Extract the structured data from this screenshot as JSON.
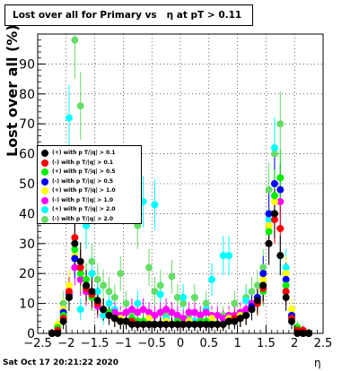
{
  "chart_data": {
    "type": "scatter",
    "title": "Lost over all for Primary vs   η at pT > 0.11",
    "xlabel": "η",
    "ylabel": "Lost over all (%)",
    "xlim": [
      -2.5,
      2.5
    ],
    "ylim": [
      0,
      100
    ],
    "x_ticks": [
      "−2.5",
      "−2",
      "−1.5",
      "−1",
      "−0.5",
      "0",
      "0.5",
      "1",
      "1.5",
      "2",
      "2.5"
    ],
    "y_ticks": [
      "0",
      "10",
      "20",
      "30",
      "40",
      "50",
      "60",
      "70",
      "80",
      "90"
    ],
    "grid": true,
    "error_bars": true,
    "legend_position": "left-middle",
    "series": [
      {
        "name": "(+) with p T/|q| > 0.1",
        "color": "#000000",
        "x": [
          -2.25,
          -2.15,
          -2.05,
          -1.95,
          -1.85,
          -1.75,
          -1.65,
          -1.55,
          -1.45,
          -1.35,
          -1.25,
          -1.15,
          -1.05,
          -0.95,
          -0.85,
          -0.75,
          -0.65,
          -0.55,
          -0.45,
          -0.35,
          -0.25,
          -0.15,
          -0.05,
          0.05,
          0.15,
          0.25,
          0.35,
          0.45,
          0.55,
          0.65,
          0.75,
          0.85,
          0.95,
          1.05,
          1.15,
          1.25,
          1.35,
          1.45,
          1.55,
          1.65,
          1.75,
          1.85,
          1.95,
          2.05,
          2.15,
          2.25
        ],
        "y": [
          0,
          0,
          4,
          12,
          30,
          24,
          16,
          14,
          11,
          8,
          6,
          5,
          4,
          4,
          3,
          3,
          3,
          3,
          3,
          3,
          3,
          3,
          3,
          3,
          3,
          3,
          3,
          3,
          3,
          3,
          3,
          4,
          4,
          5,
          6,
          8,
          11,
          16,
          30,
          40,
          26,
          12,
          4,
          0,
          0,
          0
        ]
      },
      {
        "name": "(-) with p T/|q| > 0.1",
        "color": "#ff0000",
        "x": [
          -2.25,
          -2.15,
          -2.05,
          -1.95,
          -1.85,
          -1.75,
          -1.65,
          -1.55,
          -1.45,
          -1.35,
          -1.25,
          -1.15,
          -1.05,
          -0.95,
          -0.85,
          -0.75,
          -0.65,
          -0.55,
          -0.45,
          -0.35,
          -0.25,
          -0.15,
          -0.05,
          0.05,
          0.15,
          0.25,
          0.35,
          0.45,
          0.55,
          0.65,
          0.75,
          0.85,
          0.95,
          1.05,
          1.15,
          1.25,
          1.35,
          1.45,
          1.55,
          1.65,
          1.75,
          1.85,
          1.95,
          2.05,
          2.15,
          2.25
        ],
        "y": [
          0,
          1,
          5,
          14,
          32,
          22,
          15,
          13,
          10,
          8,
          6,
          5,
          4,
          4,
          4,
          3,
          3,
          3,
          3,
          3,
          3,
          3,
          3,
          3,
          3,
          3,
          3,
          3,
          3,
          3,
          3,
          4,
          5,
          5,
          6,
          8,
          10,
          15,
          30,
          38,
          35,
          14,
          5,
          1,
          1,
          0
        ]
      },
      {
        "name": "(+) with p T/|q| > 0.5",
        "color": "#00ee00",
        "x": [
          -2.25,
          -2.15,
          -2.05,
          -1.95,
          -1.85,
          -1.75,
          -1.65,
          -1.55,
          -1.45,
          -1.35,
          -1.25,
          -1.15,
          -1.05,
          -0.95,
          -0.85,
          -0.75,
          -0.65,
          -0.55,
          -0.45,
          -0.35,
          -0.25,
          -0.15,
          -0.05,
          0.05,
          0.15,
          0.25,
          0.35,
          0.45,
          0.55,
          0.65,
          0.75,
          0.85,
          0.95,
          1.05,
          1.15,
          1.25,
          1.35,
          1.45,
          1.55,
          1.65,
          1.75,
          1.85,
          1.95,
          2.05,
          2.15,
          2.25
        ],
        "y": [
          0,
          2,
          6,
          12,
          28,
          20,
          18,
          12,
          10,
          8,
          7,
          5,
          4,
          4,
          5,
          4,
          4,
          3,
          3,
          3,
          3,
          3,
          4,
          3,
          3,
          3,
          4,
          4,
          3,
          3,
          3,
          4,
          4,
          5,
          6,
          8,
          10,
          14,
          34,
          46,
          52,
          16,
          5,
          2,
          0,
          0
        ]
      },
      {
        "name": "(-) with p T/|q| > 0.5",
        "color": "#0000ff",
        "x": [
          -2.25,
          -2.15,
          -2.05,
          -1.95,
          -1.85,
          -1.75,
          -1.65,
          -1.55,
          -1.45,
          -1.35,
          -1.25,
          -1.15,
          -1.05,
          -0.95,
          -0.85,
          -0.75,
          -0.65,
          -0.55,
          -0.45,
          -0.35,
          -0.25,
          -0.15,
          -0.05,
          0.05,
          0.15,
          0.25,
          0.35,
          0.45,
          0.55,
          0.65,
          0.75,
          0.85,
          0.95,
          1.05,
          1.15,
          1.25,
          1.35,
          1.45,
          1.55,
          1.65,
          1.75,
          1.85,
          1.95,
          2.05,
          2.15,
          2.25
        ],
        "y": [
          0,
          1,
          7,
          13,
          25,
          22,
          16,
          13,
          10,
          8,
          7,
          5,
          4,
          4,
          4,
          3,
          3,
          3,
          3,
          3,
          3,
          3,
          3,
          3,
          3,
          3,
          3,
          3,
          3,
          3,
          3,
          4,
          4,
          5,
          6,
          9,
          12,
          20,
          40,
          50,
          48,
          18,
          6,
          1,
          0,
          0
        ]
      },
      {
        "name": "(+) with p T/|q| > 1.0",
        "color": "#ffff00",
        "x": [
          -2.25,
          -2.15,
          -2.05,
          -1.95,
          -1.85,
          -1.75,
          -1.65,
          -1.55,
          -1.45,
          -1.35,
          -1.25,
          -1.15,
          -1.05,
          -0.95,
          -0.85,
          -0.75,
          -0.65,
          -0.55,
          -0.45,
          -0.35,
          -0.25,
          -0.15,
          -0.05,
          0.05,
          0.15,
          0.25,
          0.35,
          0.45,
          0.55,
          0.65,
          0.75,
          0.85,
          0.95,
          1.05,
          1.15,
          1.25,
          1.35,
          1.45,
          1.55,
          1.65,
          1.75,
          1.85,
          1.95,
          2.05,
          2.15,
          2.25
        ],
        "y": [
          0,
          3,
          8,
          16,
          26,
          24,
          18,
          12,
          10,
          8,
          6,
          5,
          5,
          4,
          4,
          4,
          3,
          5,
          3,
          3,
          4,
          3,
          4,
          3,
          4,
          3,
          3,
          4,
          5,
          3,
          3,
          5,
          5,
          6,
          6,
          9,
          12,
          18,
          36,
          44,
          48,
          20,
          8,
          2,
          0,
          0
        ]
      },
      {
        "name": "(-) with p T/|q| > 1.0",
        "color": "#ff00ff",
        "x": [
          -2.25,
          -2.15,
          -2.05,
          -1.95,
          -1.85,
          -1.75,
          -1.65,
          -1.55,
          -1.45,
          -1.35,
          -1.25,
          -1.15,
          -1.05,
          -0.95,
          -0.85,
          -0.75,
          -0.65,
          -0.55,
          -0.45,
          -0.35,
          -0.25,
          -0.15,
          -0.05,
          0.05,
          0.15,
          0.25,
          0.35,
          0.45,
          0.55,
          0.65,
          0.75,
          0.85,
          0.95,
          1.05,
          1.15,
          1.25,
          1.35,
          1.45,
          1.55,
          1.65,
          1.75,
          1.85,
          1.95,
          2.05,
          2.15,
          2.25
        ],
        "y": [
          0,
          2,
          6,
          12,
          22,
          18,
          14,
          12,
          9,
          8,
          7,
          7,
          6,
          7,
          8,
          7,
          8,
          7,
          6,
          7,
          8,
          7,
          6,
          5,
          7,
          7,
          6,
          7,
          6,
          6,
          5,
          6,
          6,
          7,
          8,
          10,
          12,
          16,
          36,
          40,
          44,
          14,
          6,
          1,
          1,
          0
        ]
      },
      {
        "name": "(+) with p T/|q| > 2.0",
        "color": "#00ffff",
        "x": [
          -2.25,
          -2.15,
          -2.05,
          -1.95,
          -1.85,
          -1.75,
          -1.65,
          -1.55,
          -1.45,
          -1.35,
          -1.25,
          -1.15,
          -1.05,
          -0.95,
          -0.85,
          -0.75,
          -0.65,
          -0.55,
          -0.45,
          -0.35,
          -0.25,
          -0.15,
          -0.05,
          0.05,
          0.15,
          0.25,
          0.35,
          0.45,
          0.55,
          0.65,
          0.75,
          0.85,
          0.95,
          1.05,
          1.15,
          1.25,
          1.35,
          1.45,
          1.55,
          1.65,
          1.75,
          1.85,
          1.95,
          2.05,
          2.15,
          2.25
        ],
        "y": [
          0,
          3,
          6,
          72,
          30,
          8,
          36,
          20,
          14,
          6,
          10,
          8,
          5,
          4,
          5,
          10,
          44,
          3,
          43,
          13,
          5,
          3,
          5,
          12,
          4,
          4,
          3,
          8,
          18,
          3,
          26,
          26,
          5,
          6,
          11,
          9,
          12,
          16,
          38,
          62,
          26,
          22,
          6,
          2,
          0,
          0
        ]
      },
      {
        "name": "(-) with p T/|q| > 2.0",
        "color": "#66dd66",
        "x": [
          -2.25,
          -2.15,
          -2.05,
          -1.95,
          -1.85,
          -1.75,
          -1.65,
          -1.55,
          -1.45,
          -1.35,
          -1.25,
          -1.15,
          -1.05,
          -0.95,
          -0.85,
          -0.75,
          -0.65,
          -0.55,
          -0.45,
          -0.35,
          -0.25,
          -0.15,
          -0.05,
          0.05,
          0.15,
          0.25,
          0.35,
          0.45,
          0.55,
          0.65,
          0.75,
          0.85,
          0.95,
          1.05,
          1.15,
          1.25,
          1.35,
          1.45,
          1.55,
          1.65,
          1.75,
          1.85,
          1.95,
          2.05,
          2.15,
          2.25
        ],
        "y": [
          0,
          2,
          10,
          16,
          98,
          76,
          36,
          24,
          18,
          16,
          14,
          12,
          20,
          10,
          7,
          36,
          8,
          22,
          14,
          16,
          6,
          19,
          12,
          10,
          6,
          12,
          6,
          10,
          4,
          3,
          6,
          4,
          10,
          5,
          12,
          14,
          16,
          22,
          48,
          60,
          70,
          20,
          8,
          2,
          0,
          0
        ]
      }
    ]
  },
  "footer": {
    "datestamp": "Sat Oct 17 20:21:22 2020"
  }
}
